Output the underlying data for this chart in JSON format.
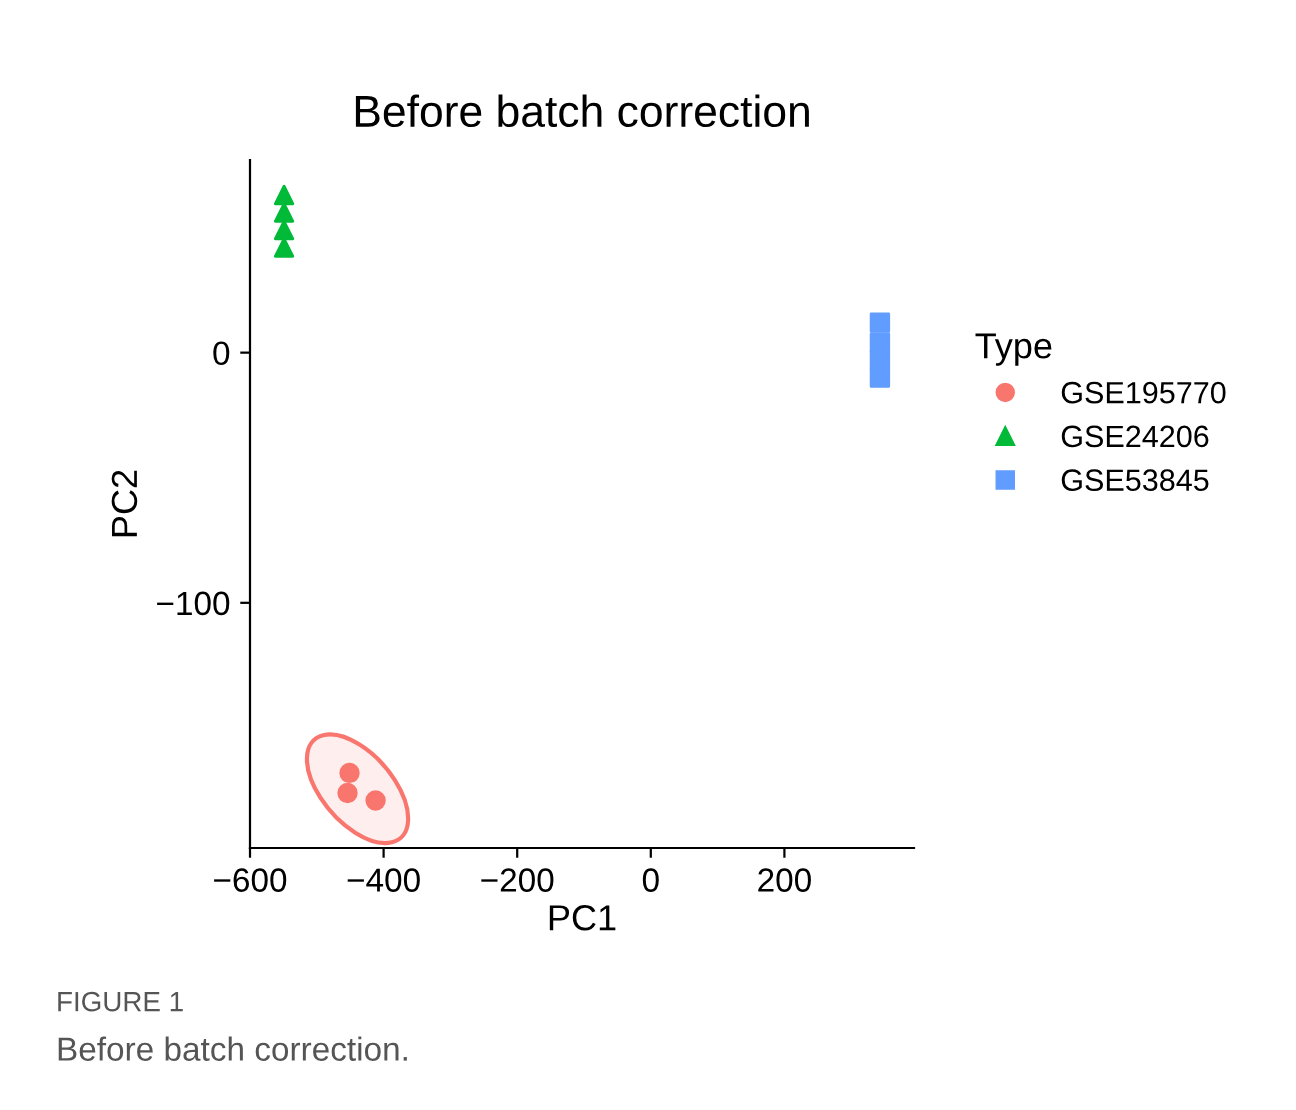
{
  "chart_data": {
    "type": "scatter",
    "title": "Before batch correction",
    "xlabel": "PC1",
    "ylabel": "PC2",
    "legend_title": "Type",
    "xlim": [
      -600,
      394
    ],
    "ylim": [
      -198,
      77
    ],
    "xticks": [
      {
        "value": -600,
        "label": "−600"
      },
      {
        "value": -400,
        "label": "−400"
      },
      {
        "value": -200,
        "label": "−200"
      },
      0,
      200
    ],
    "yticks": [
      {
        "value": -100,
        "label": "−100"
      },
      0
    ],
    "grid": false,
    "legend": "right",
    "series": [
      {
        "name": "GSE195770",
        "color": "#f8766d",
        "marker": "circle",
        "x": [
          -451,
          -454,
          -412
        ],
        "values": [
          -168,
          -176,
          -179
        ]
      },
      {
        "name": "GSE24206",
        "color": "#00ba38",
        "marker": "triangle",
        "x": [
          -549,
          -549,
          -549,
          -549
        ],
        "values": [
          63,
          56,
          49,
          42
        ]
      },
      {
        "name": "GSE53845",
        "color": "#619cff",
        "marker": "square",
        "x": [
          343,
          343,
          343,
          343
        ],
        "values": [
          12,
          4,
          -3,
          -10
        ]
      }
    ],
    "annotations": [
      "FIGURE 1",
      "Before batch correction."
    ]
  }
}
